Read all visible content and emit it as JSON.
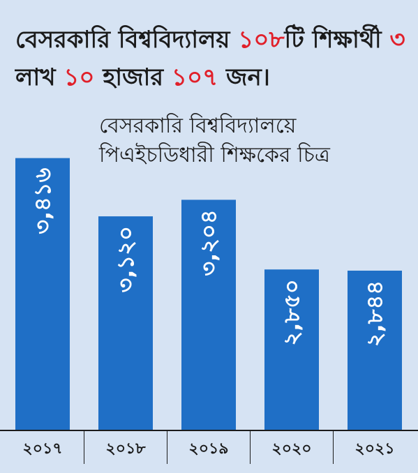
{
  "headline": {
    "part1": "বেসরকারি বিশ্ববিদ্যালয় ",
    "count": "১০৮",
    "part2": "টি শিক্ষার্থী ",
    "lakh": "৩",
    "part3": " লাখ ",
    "thousand": "১০",
    "part4": " হাজার ",
    "rest": "১০৭",
    "part5": " জন।"
  },
  "subtitle": {
    "line1": "বেসরকারি বিশ্ববিদ্যালয়ে",
    "line2": "পিএইচডিধারী শিক্ষকের চিত্র"
  },
  "colors": {
    "bar": "#1f6fc6",
    "accent": "#e1202a",
    "background": "#d6e3f3"
  },
  "chart_data": {
    "type": "bar",
    "categories": [
      "২০১৭",
      "২০১৮",
      "২০১৯",
      "২০২০",
      "২০২১"
    ],
    "values": [
      3416,
      3120,
      3204,
      2850,
      2844
    ],
    "value_labels": [
      "৩,৪১৬",
      "৩,১২০",
      "৩,২০৪",
      "২,৮৫০",
      "২,৮৪৪"
    ],
    "title": "বেসরকারি বিশ্ববিদ্যালয়ে পিএইচডিধারী শিক্ষকের চিত্র",
    "xlabel": "",
    "ylabel": "",
    "ylim": [
      2500,
      3450
    ],
    "grid": false
  }
}
